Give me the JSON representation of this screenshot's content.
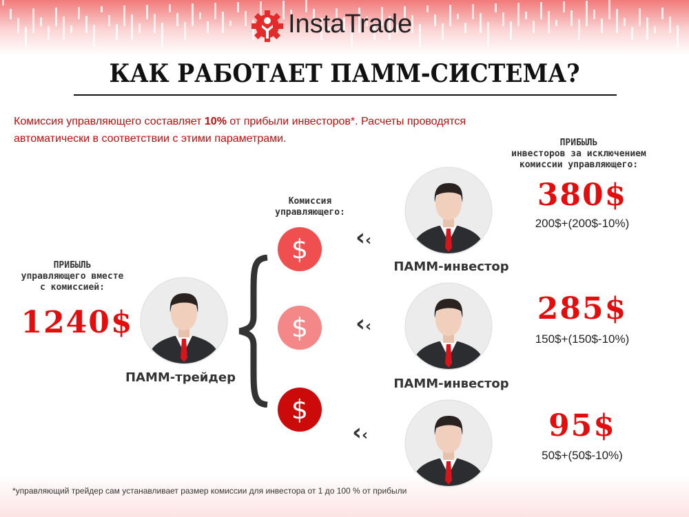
{
  "brand": {
    "name": "InstaTrade",
    "color": "#e32b2b"
  },
  "title": "КАК РАБОТАЕТ ПАММ-СИСТЕМА?",
  "intro": {
    "part1": "Комиссия управляющего составляет ",
    "highlight": "10%",
    "part2": " от прибыли инвесторов*. Расчеты проводятся автоматически в соответствии с этими параметрами."
  },
  "trader": {
    "header": [
      "ПРИБЫЛЬ",
      "управляющего вместе",
      "с комиссией:"
    ],
    "amount": "1240$",
    "role": "ПАММ-трейдер"
  },
  "commission": {
    "header": [
      "Комиссия",
      "управляющего:"
    ],
    "icons": [
      {
        "icon": "dollar-icon",
        "color": "#ef4f4f"
      },
      {
        "icon": "dollar-icon",
        "color": "#f48787"
      },
      {
        "icon": "dollar-icon",
        "color": "#cc0a0a"
      }
    ]
  },
  "investors": {
    "header": [
      "ПРИБЫЛЬ",
      "инвесторов за исключением",
      "комиссии управляющего:"
    ],
    "items": [
      {
        "role": "ПАММ-инвестор",
        "amount": "380$",
        "calc": "200$+(200$-10%)"
      },
      {
        "role": "ПАММ-инвестор",
        "amount": "285$",
        "calc": "150$+(150$-10%)"
      },
      {
        "role": "",
        "amount": "95$",
        "calc": "50$+(50$-10%)"
      }
    ]
  },
  "footnote": "*управляющий трейдер сам устанавливает размер комиссии для инвестора от 1 до 100 % от прибыли"
}
